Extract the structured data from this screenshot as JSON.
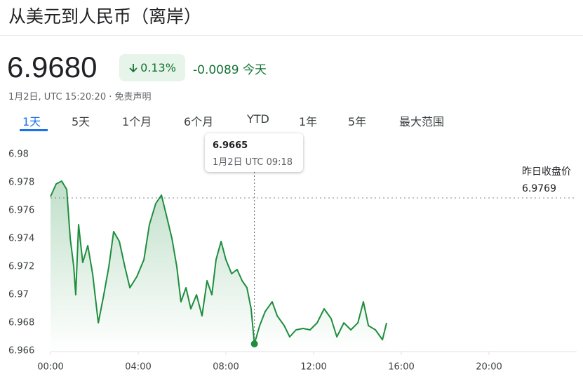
{
  "header": {
    "title": "从美元到人民币（离岸）",
    "price": "6.9680",
    "change_percent": "0.13%",
    "change": "-0.0089",
    "period": "今天",
    "timestamp": "1月2日, UTC 15:20:20",
    "disclaimer": "免责声明"
  },
  "tabs": [
    "1天",
    "5天",
    "1个月",
    "6个月",
    "YTD",
    "1年",
    "5年",
    "最大范围"
  ],
  "chart_data": {
    "type": "line",
    "color": "#1e8e3e",
    "x": [
      0,
      0.26,
      0.51,
      0.74,
      0.9,
      1.06,
      1.15,
      1.28,
      1.47,
      1.7,
      1.92,
      2.18,
      2.43,
      2.66,
      2.88,
      3.14,
      3.39,
      3.62,
      3.94,
      4.26,
      4.51,
      4.8,
      5.06,
      5.31,
      5.54,
      5.76,
      5.95,
      6.18,
      6.4,
      6.66,
      6.91,
      7.14,
      7.36,
      7.55,
      7.78,
      8,
      8.26,
      8.51,
      8.74,
      8.96,
      9.15,
      9.3,
      9.54,
      9.79,
      10.11,
      10.34,
      10.66,
      10.91,
      11.2,
      11.52,
      11.84,
      12.16,
      12.48,
      12.8,
      13.06,
      13.38,
      13.7,
      14.02,
      14.27,
      14.5,
      14.82,
      15.14,
      15.33
    ],
    "values": [
      6.977,
      6.9779,
      6.9781,
      6.9775,
      6.974,
      6.972,
      6.97,
      6.975,
      6.9723,
      6.9735,
      6.9715,
      6.968,
      6.97,
      6.972,
      6.9745,
      6.9738,
      6.972,
      6.9705,
      6.9713,
      6.9725,
      6.975,
      6.9765,
      6.9771,
      6.9755,
      6.974,
      6.972,
      6.9695,
      6.9705,
      6.969,
      6.97,
      6.9685,
      6.971,
      6.97,
      6.9725,
      6.9738,
      6.9725,
      6.9715,
      6.9718,
      6.971,
      6.9705,
      6.969,
      6.9665,
      6.9678,
      6.9688,
      6.9695,
      6.9685,
      6.9678,
      6.967,
      6.9675,
      6.9676,
      6.9675,
      6.968,
      6.969,
      6.9683,
      6.967,
      6.968,
      6.9675,
      6.968,
      6.9695,
      6.9678,
      6.9675,
      6.9668,
      6.968
    ],
    "xlim": [
      0,
      24
    ],
    "xticks": [
      {
        "value": 0,
        "label": "00:00"
      },
      {
        "value": 4,
        "label": "04:00"
      },
      {
        "value": 8,
        "label": "08:00"
      },
      {
        "value": 12,
        "label": "12:00"
      },
      {
        "value": 16,
        "label": "16:00"
      },
      {
        "value": 20,
        "label": "20:00"
      }
    ],
    "ylim": [
      6.966,
      6.98
    ],
    "yticks": [
      6.966,
      6.968,
      6.97,
      6.972,
      6.974,
      6.976,
      6.978,
      6.98
    ],
    "reference_line": {
      "label": "昨日收盘价",
      "value": 6.9769
    },
    "tooltip": {
      "value": 6.9665,
      "x": 9.3,
      "label": "1月2日 UTC 09:18"
    }
  }
}
